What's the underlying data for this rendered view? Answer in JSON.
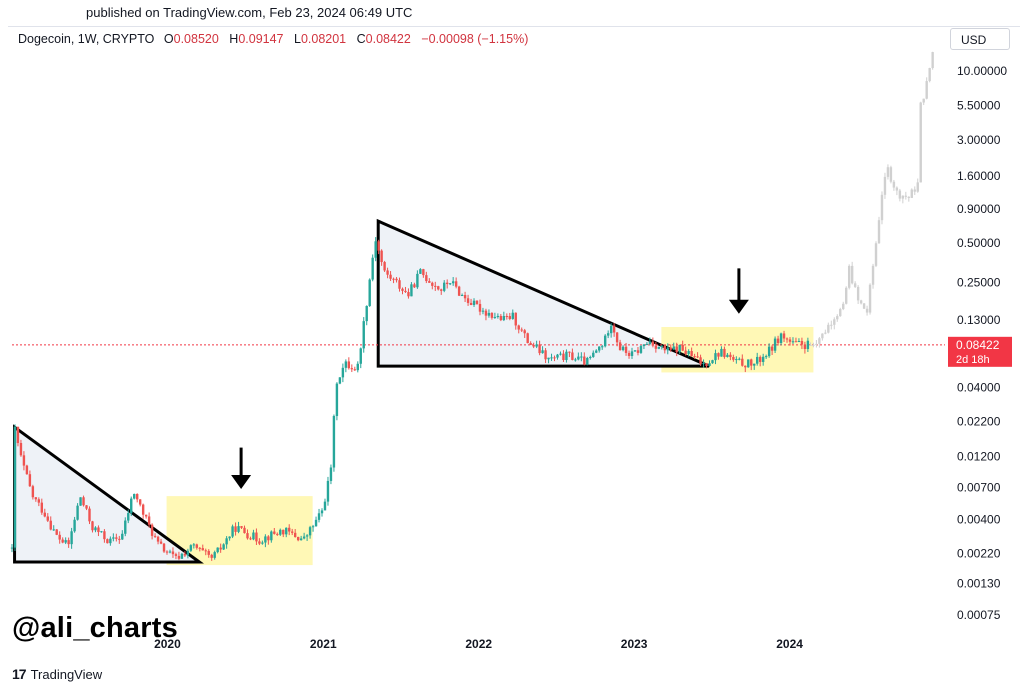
{
  "header": {
    "published": "published on TradingView.com, Feb 23, 2024 06:49 UTC"
  },
  "legend": {
    "symbol": "Dogecoin, 1W, CRYPTO",
    "o_label": "O",
    "o_value": "0.08520",
    "h_label": "H",
    "h_value": "0.09147",
    "l_label": "L",
    "l_value": "0.08201",
    "c_label": "C",
    "c_value": "0.08422",
    "change": "−0.00098 (−1.15%)"
  },
  "currency_button": "USD",
  "watermark": "@ali_charts",
  "branding": {
    "logo_icon": "tradingview-logo-icon",
    "name": "TradingView"
  },
  "chart_data": {
    "type": "candlestick",
    "scale": "log",
    "ylim": [
      0.0006,
      15
    ],
    "xlim": [
      "2019-01-01",
      "2024-12-31"
    ],
    "y_ticks": [
      {
        "value": 10,
        "label": "10.00000"
      },
      {
        "value": 5.5,
        "label": "5.50000"
      },
      {
        "value": 3,
        "label": "3.00000"
      },
      {
        "value": 1.6,
        "label": "1.60000"
      },
      {
        "value": 0.9,
        "label": "0.90000"
      },
      {
        "value": 0.5,
        "label": "0.50000"
      },
      {
        "value": 0.25,
        "label": "0.25000"
      },
      {
        "value": 0.13,
        "label": "0.13000"
      },
      {
        "value": 0.04,
        "label": "0.04000"
      },
      {
        "value": 0.022,
        "label": "0.02200"
      },
      {
        "value": 0.012,
        "label": "0.01200"
      },
      {
        "value": 0.007,
        "label": "0.00700"
      },
      {
        "value": 0.004,
        "label": "0.00400"
      },
      {
        "value": 0.0022,
        "label": "0.00220"
      },
      {
        "value": 0.0013,
        "label": "0.00130"
      },
      {
        "value": 0.00075,
        "label": "0.00075"
      }
    ],
    "x_ticks": [
      {
        "value": "2020-01-01",
        "label": "2020"
      },
      {
        "value": "2021-01-01",
        "label": "2021"
      },
      {
        "value": "2022-01-01",
        "label": "2022"
      },
      {
        "value": "2023-01-01",
        "label": "2023"
      },
      {
        "value": "2024-01-01",
        "label": "2024"
      }
    ],
    "last_price": {
      "value": 0.08422,
      "label": "0.08422",
      "countdown": "2d 18h",
      "color": "#f23645"
    },
    "colors": {
      "up": "#26a69a",
      "down": "#ef5350",
      "projection": "#d0d0d0",
      "triangle_fill": "#eef2f7",
      "zone_fill": "#fff59d"
    },
    "price_path": [
      [
        "2019-01-01",
        0.0023
      ],
      [
        "2019-01-07",
        0.02
      ],
      [
        "2019-01-21",
        0.012
      ],
      [
        "2019-02-18",
        0.006
      ],
      [
        "2019-03-18",
        0.0045
      ],
      [
        "2019-04-15",
        0.003
      ],
      [
        "2019-05-13",
        0.0025
      ],
      [
        "2019-06-10",
        0.006
      ],
      [
        "2019-07-08",
        0.0035
      ],
      [
        "2019-08-19",
        0.0027
      ],
      [
        "2019-09-16",
        0.003
      ],
      [
        "2019-10-14",
        0.0065
      ],
      [
        "2019-11-04",
        0.0045
      ],
      [
        "2019-12-09",
        0.0026
      ],
      [
        "2020-01-20",
        0.002
      ],
      [
        "2020-03-02",
        0.0025
      ],
      [
        "2020-04-13",
        0.002
      ],
      [
        "2020-05-04",
        0.0024
      ],
      [
        "2020-06-08",
        0.0035
      ],
      [
        "2020-08-03",
        0.0028
      ],
      [
        "2020-09-28",
        0.0033
      ],
      [
        "2020-11-16",
        0.0028
      ],
      [
        "2020-12-28",
        0.0045
      ],
      [
        "2021-01-18",
        0.009
      ],
      [
        "2021-02-01",
        0.045
      ],
      [
        "2021-02-22",
        0.06
      ],
      [
        "2021-03-22",
        0.055
      ],
      [
        "2021-04-12",
        0.17
      ],
      [
        "2021-05-03",
        0.55
      ],
      [
        "2021-05-24",
        0.3
      ],
      [
        "2021-06-21",
        0.25
      ],
      [
        "2021-07-19",
        0.2
      ],
      [
        "2021-08-16",
        0.3
      ],
      [
        "2021-09-13",
        0.25
      ],
      [
        "2021-10-04",
        0.22
      ],
      [
        "2021-10-25",
        0.26
      ],
      [
        "2021-11-22",
        0.2
      ],
      [
        "2021-12-20",
        0.17
      ],
      [
        "2022-01-17",
        0.15
      ],
      [
        "2022-02-28",
        0.13
      ],
      [
        "2022-03-21",
        0.14
      ],
      [
        "2022-04-25",
        0.09
      ],
      [
        "2022-05-16",
        0.08
      ],
      [
        "2022-06-13",
        0.065
      ],
      [
        "2022-08-01",
        0.07
      ],
      [
        "2022-09-12",
        0.062
      ],
      [
        "2022-10-24",
        0.09
      ],
      [
        "2022-11-07",
        0.13
      ],
      [
        "2022-11-28",
        0.08
      ],
      [
        "2022-12-26",
        0.07
      ],
      [
        "2023-02-06",
        0.09
      ],
      [
        "2023-03-20",
        0.075
      ],
      [
        "2023-04-17",
        0.08
      ],
      [
        "2023-06-12",
        0.06
      ],
      [
        "2023-07-24",
        0.075
      ],
      [
        "2023-08-28",
        0.062
      ],
      [
        "2023-10-09",
        0.06
      ],
      [
        "2023-11-13",
        0.075
      ],
      [
        "2023-12-11",
        0.1
      ],
      [
        "2024-01-08",
        0.085
      ],
      [
        "2024-02-19",
        0.08422
      ]
    ],
    "projection_path": [
      [
        "2024-02-19",
        0.0842
      ],
      [
        "2024-03-18",
        0.1
      ],
      [
        "2024-04-15",
        0.14
      ],
      [
        "2024-05-06",
        0.16
      ],
      [
        "2024-05-20",
        0.32
      ],
      [
        "2024-06-10",
        0.18
      ],
      [
        "2024-07-01",
        0.15
      ],
      [
        "2024-07-22",
        0.5
      ],
      [
        "2024-08-05",
        1.2
      ],
      [
        "2024-08-19",
        1.8
      ],
      [
        "2024-09-09",
        1.2
      ],
      [
        "2024-10-07",
        1.1
      ],
      [
        "2024-10-28",
        1.4
      ],
      [
        "2024-11-04",
        5.5
      ],
      [
        "2024-11-18",
        8
      ],
      [
        "2024-12-02",
        14
      ]
    ],
    "triangles": [
      {
        "top": [
          "2019-01-07",
          0.02
        ],
        "bottom_left": [
          "2019-01-07",
          0.0019
        ],
        "apex": [
          "2020-03-16",
          0.0019
        ]
      },
      {
        "top": [
          "2021-05-10",
          0.73
        ],
        "bottom_left": [
          "2021-05-10",
          0.058
        ],
        "apex": [
          "2023-06-26",
          0.058
        ]
      }
    ],
    "zones": [
      {
        "x0": "2019-12-30",
        "x1": "2020-12-07",
        "y_low": 0.0018,
        "y_high": 0.006
      },
      {
        "x0": "2023-03-06",
        "x1": "2024-02-26",
        "y_low": 0.052,
        "y_high": 0.115
      }
    ],
    "arrows": [
      {
        "x": "2020-06-22",
        "y_from": 0.014,
        "y_to": 0.0068
      },
      {
        "x": "2023-09-04",
        "y_from": 0.32,
        "y_to": 0.145
      }
    ]
  }
}
